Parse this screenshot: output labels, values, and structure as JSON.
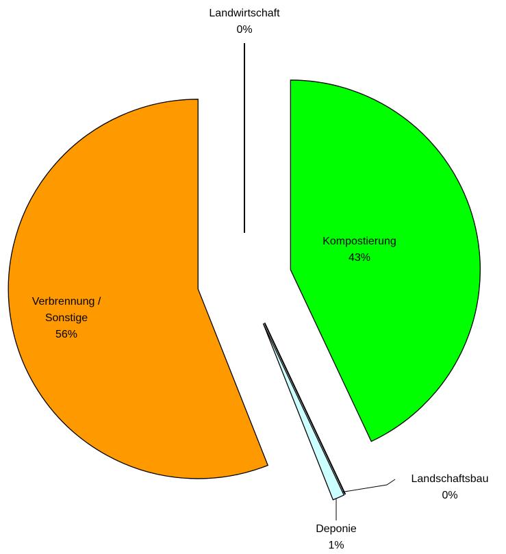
{
  "chart_data": {
    "type": "pie",
    "categories": [
      "Kompostierung",
      "Landschaftsbau",
      "Deponie",
      "Verbrennung / Sonstige",
      "Landwirtschaft"
    ],
    "values": [
      43,
      0,
      1,
      56,
      0
    ],
    "value_labels": [
      "43%",
      "0%",
      "1%",
      "56%",
      "0%"
    ],
    "colors": [
      "#00ff00",
      "#0a2a2a",
      "#ccffff",
      "#ff9900",
      "#9999ff"
    ]
  }
}
